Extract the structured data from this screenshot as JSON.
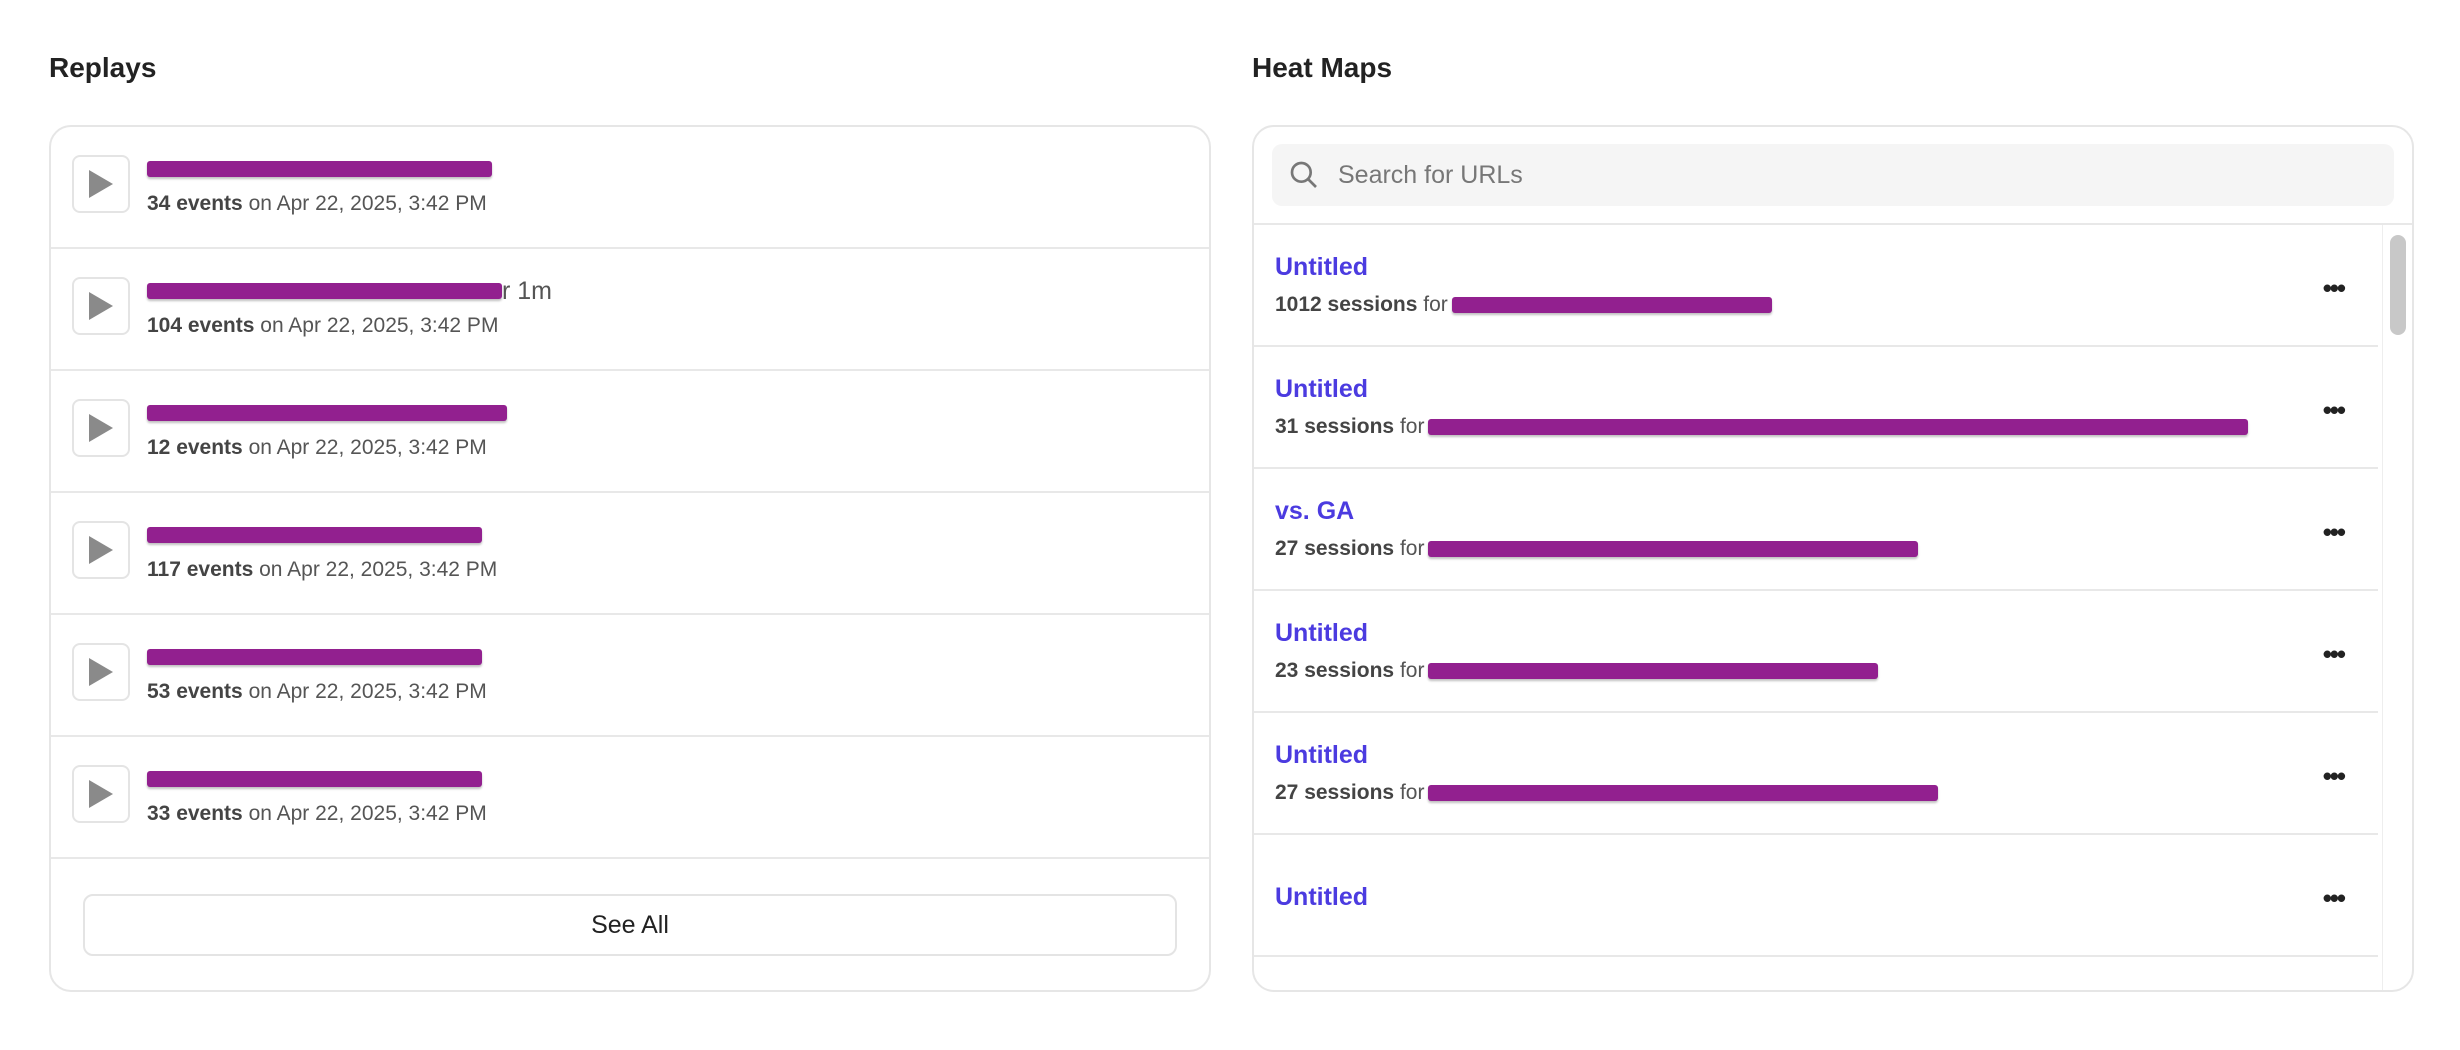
{
  "replays": {
    "title": "Replays",
    "see_all": "See All",
    "items": [
      {
        "events": "34 events",
        "date": "on Apr 22, 2025, 3:42 PM",
        "tail": ""
      },
      {
        "events": "104 events",
        "date": "on Apr 22, 2025, 3:42 PM",
        "tail": "r 1m"
      },
      {
        "events": "12 events",
        "date": "on Apr 22, 2025, 3:42 PM",
        "tail": ""
      },
      {
        "events": "117 events",
        "date": "on Apr 22, 2025, 3:42 PM",
        "tail": ""
      },
      {
        "events": "53 events",
        "date": "on Apr 22, 2025, 3:42 PM",
        "tail": ""
      },
      {
        "events": "33 events",
        "date": "on Apr 22, 2025, 3:42 PM",
        "tail": ""
      }
    ]
  },
  "heatmaps": {
    "title": "Heat Maps",
    "search_placeholder": "Search for URLs",
    "items": [
      {
        "title": "Untitled",
        "sessions": "1012 sessions",
        "for": "for"
      },
      {
        "title": "Untitled",
        "sessions": "31 sessions",
        "for": "for"
      },
      {
        "title": "vs. GA",
        "sessions": "27 sessions",
        "for": "for"
      },
      {
        "title": "Untitled",
        "sessions": "23 sessions",
        "for": "for"
      },
      {
        "title": "Untitled",
        "sessions": "27 sessions",
        "for": "for"
      },
      {
        "title": "Untitled",
        "sessions": "",
        "for": ""
      }
    ]
  },
  "colors": {
    "link": "#4b3be0",
    "redaction": "#92208f"
  }
}
